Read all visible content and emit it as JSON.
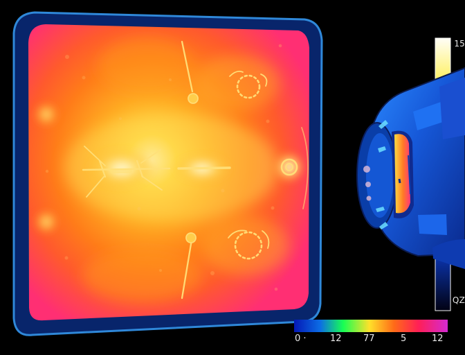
{
  "vertical_scale": {
    "top_label": "15",
    "bottom_label": "QZ"
  },
  "horizontal_scale": {
    "labels": [
      "0 ·",
      "12",
      "77",
      "5",
      "12"
    ]
  },
  "colors": {
    "background": "#000000",
    "frame_border": "#0b2f77",
    "thermal_hot": "#fff5c0",
    "thermal_mid": "#ff8a1e",
    "thermal_edge": "#ff2f73",
    "camera_body": "#1459d6"
  }
}
